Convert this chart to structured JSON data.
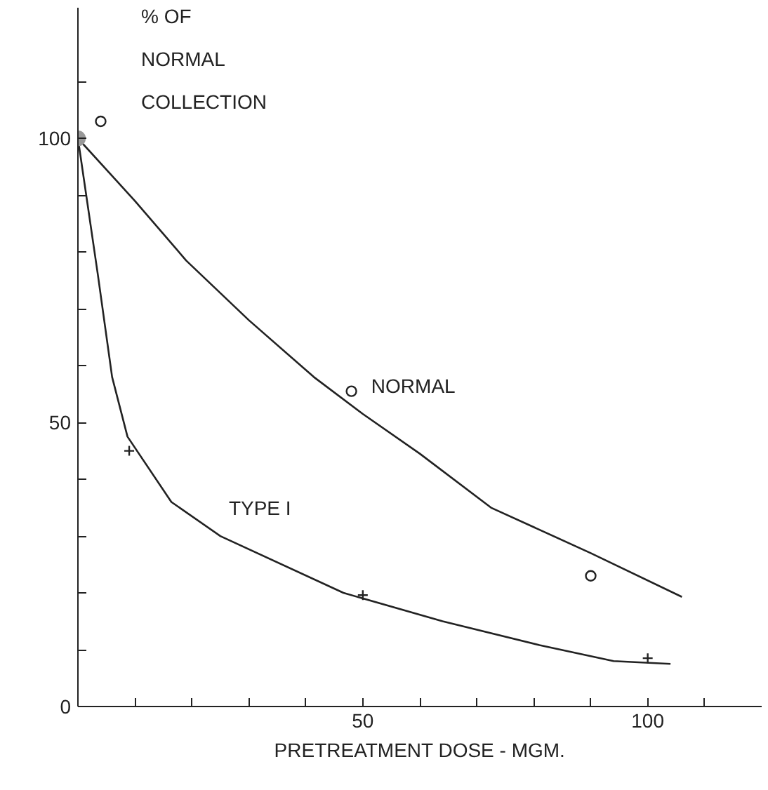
{
  "chart_data": {
    "type": "line",
    "xlabel": "PRETREATMENT DOSE - MGM.",
    "ylabel": "% OF\nNORMAL\nCOLLECTION",
    "xlim": [
      0,
      120
    ],
    "ylim": [
      0,
      123
    ],
    "xticks": [
      {
        "value": 0,
        "label": null
      },
      {
        "value": 10,
        "label": null
      },
      {
        "value": 20,
        "label": null
      },
      {
        "value": 30,
        "label": null
      },
      {
        "value": 40,
        "label": null
      },
      50,
      {
        "value": 60,
        "label": null
      },
      {
        "value": 70,
        "label": null
      },
      {
        "value": 80,
        "label": null
      },
      {
        "value": 90,
        "label": null
      },
      100,
      {
        "value": 110,
        "label": null
      }
    ],
    "yticks": [
      0,
      {
        "value": 10,
        "label": null
      },
      {
        "value": 20,
        "label": null
      },
      {
        "value": 30,
        "label": null
      },
      {
        "value": 40,
        "label": null
      },
      50,
      {
        "value": 60,
        "label": null
      },
      {
        "value": 70,
        "label": null
      },
      {
        "value": 80,
        "label": null
      },
      {
        "value": 90,
        "label": null
      },
      100,
      {
        "value": 110,
        "label": null
      }
    ],
    "grid": false,
    "series": [
      {
        "name": "NORMAL",
        "color": "#222222",
        "x": [
          0,
          10,
          19,
          30,
          41.4,
          50,
          60,
          72.5,
          90,
          106
        ],
        "values": [
          100,
          89,
          78.5,
          68,
          58,
          51.5,
          44.5,
          35,
          27,
          19.3
        ]
      },
      {
        "type": "scatter",
        "marker": "circle",
        "color": "#222222",
        "x": [
          4,
          48,
          90
        ],
        "values": [
          103,
          55.5,
          23
        ]
      },
      {
        "name": "TYPE I",
        "color": "#222222",
        "x": [
          0,
          3.5,
          6,
          8.7,
          16.4,
          25,
          46.6,
          64,
          81,
          94,
          104
        ],
        "values": [
          100,
          76,
          58,
          47.5,
          36,
          30,
          20,
          15,
          10.8,
          8,
          7.5
        ]
      },
      {
        "type": "scatter",
        "marker": "cross",
        "color": "#222222",
        "x": [
          9,
          50,
          100
        ],
        "values": [
          45,
          19.6,
          8.5
        ]
      },
      {
        "type": "scatter",
        "marker": "circle",
        "color": "#999999",
        "x": [
          0
        ],
        "values": [
          100
        ]
      }
    ]
  }
}
